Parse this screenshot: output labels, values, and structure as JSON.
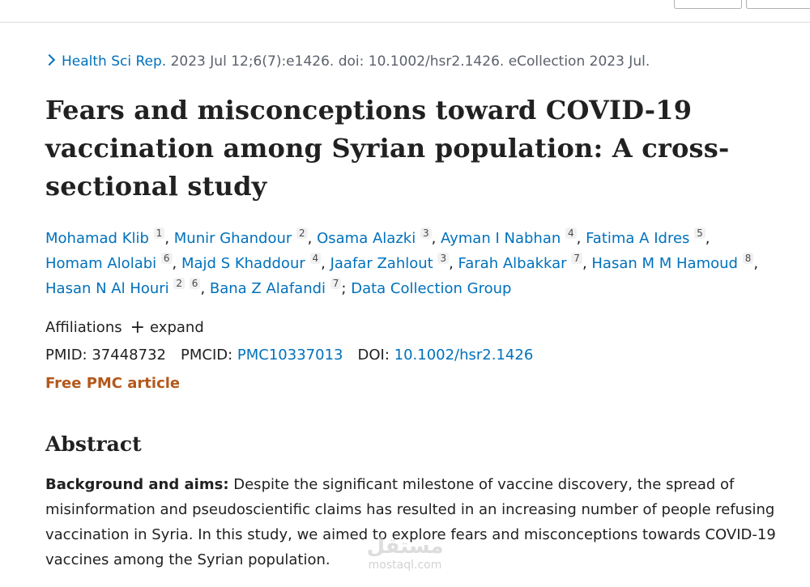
{
  "citation": {
    "journal": "Health Sci Rep.",
    "details": "2023 Jul 12;6(7):e1426. doi: 10.1002/hsr2.1426. eCollection 2023 Jul."
  },
  "article": {
    "title": "Fears and misconceptions toward COVID-19 vaccination among Syrian population: A cross-sectional study"
  },
  "authors": [
    {
      "name": "Mohamad Klib",
      "aff": "1"
    },
    {
      "name": "Munir Ghandour",
      "aff": "2"
    },
    {
      "name": "Osama Alazki",
      "aff": "3"
    },
    {
      "name": "Ayman I Nabhan",
      "aff": "4"
    },
    {
      "name": "Fatima A Idres",
      "aff": "5"
    },
    {
      "name": "Homam Alolabi",
      "aff": "6"
    },
    {
      "name": "Majd S Khaddour",
      "aff": "4"
    },
    {
      "name": "Jaafar Zahlout",
      "aff": "3"
    },
    {
      "name": "Farah Albakkar",
      "aff": "7"
    },
    {
      "name": "Hasan M M Hamoud",
      "aff": "8"
    },
    {
      "name": "Hasan N Al Houri",
      "aff": "2",
      "aff2": "6"
    },
    {
      "name": "Bana Z Alafandi",
      "aff": "7"
    },
    {
      "name": "Data Collection Group"
    }
  ],
  "affiliations": {
    "label": "Affiliations",
    "expand_label": "expand"
  },
  "identifiers": {
    "pmid_label": "PMID:",
    "pmid": "37448732",
    "pmcid_label": "PMCID:",
    "pmcid": "PMC10337013",
    "doi_label": "DOI:",
    "doi": "10.1002/hsr2.1426"
  },
  "free_article": "Free PMC article",
  "abstract": {
    "heading": "Abstract",
    "background_label": "Background and aims:",
    "background_text": "Despite the significant milestone of vaccine discovery, the spread of misinformation and pseudoscientific claims has resulted in an increasing number of people refusing vaccination in Syria. In this study, we aimed to explore fears and misconceptions towards COVID-19 vaccines among the Syrian population."
  },
  "watermark": {
    "logo": "مستقل",
    "site": "mostaql.com"
  },
  "colors": {
    "link": "#0071bc",
    "free_article": "#b4581b",
    "text": "#212121"
  }
}
